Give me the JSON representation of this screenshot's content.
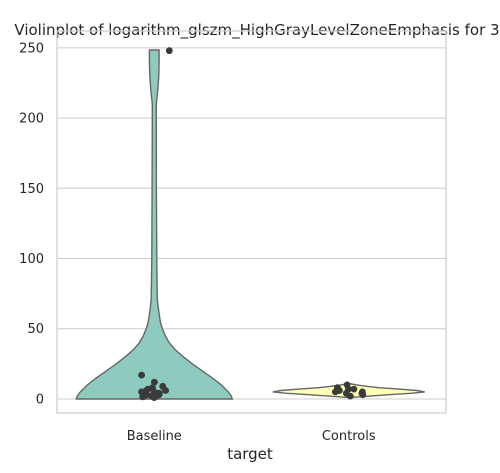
{
  "chart_data": {
    "type": "violin",
    "title": "Violinplot of logarithm_glszm_HighGrayLevelZoneEmphasis for 3",
    "xlabel": "target",
    "ylabel": "",
    "categories": [
      "Baseline",
      "Controls"
    ],
    "ylim": [
      -10,
      262
    ],
    "yticks": [
      0,
      50,
      100,
      150,
      200,
      250
    ],
    "grid": true,
    "colors": {
      "Baseline": "#8ecbbe",
      "Controls": "#fefeb6"
    },
    "violins": [
      {
        "category": "Baseline",
        "profile": [
          [
            0,
            78
          ],
          [
            2,
            77
          ],
          [
            5,
            74
          ],
          [
            10,
            67
          ],
          [
            15,
            58
          ],
          [
            20,
            48
          ],
          [
            25,
            38
          ],
          [
            30,
            29
          ],
          [
            35,
            21
          ],
          [
            40,
            15
          ],
          [
            45,
            11
          ],
          [
            50,
            8
          ],
          [
            55,
            6
          ],
          [
            60,
            5
          ],
          [
            65,
            4
          ],
          [
            70,
            3.2
          ],
          [
            80,
            2.8
          ],
          [
            100,
            2.5
          ],
          [
            150,
            2.2
          ],
          [
            200,
            2
          ],
          [
            210,
            2
          ],
          [
            220,
            3.5
          ],
          [
            230,
            4.5
          ],
          [
            240,
            4.8
          ],
          [
            248.5,
            4.8
          ]
        ]
      },
      {
        "category": "Controls",
        "profile": [
          [
            1,
            0
          ],
          [
            3,
            40
          ],
          [
            4,
            62
          ],
          [
            5,
            76
          ],
          [
            6,
            68
          ],
          [
            7,
            50
          ],
          [
            8,
            30
          ],
          [
            9,
            18
          ],
          [
            10,
            8
          ],
          [
            11,
            0
          ]
        ]
      }
    ],
    "points": [
      {
        "category": "Baseline",
        "values": [
          5,
          2,
          1.5,
          3,
          8,
          12,
          17,
          6,
          4,
          2,
          7,
          9,
          3,
          5,
          1,
          6,
          4,
          2,
          3,
          248
        ]
      },
      {
        "category": "Controls",
        "values": [
          7,
          6,
          5,
          4,
          3,
          8,
          10,
          5,
          6,
          4,
          2,
          7
        ]
      }
    ]
  }
}
